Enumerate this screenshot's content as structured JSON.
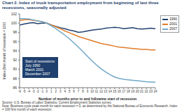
{
  "chart_data": {
    "type": "line",
    "title": "Chart 2. Index of truck transportation employment from beginning of last three recessions, seasonally adjusted",
    "x_label": "Number of months prior to and following start of recession",
    "y_label": "Index (first month of recession = 100)",
    "x": [
      -6,
      -5,
      -4,
      -3,
      -2,
      -1,
      0,
      1,
      2,
      3,
      4,
      5,
      6,
      7,
      8,
      9,
      10,
      11,
      12,
      13,
      14,
      15,
      16,
      17,
      18,
      19,
      20,
      21,
      22,
      23,
      24
    ],
    "xlim": [
      -6,
      24
    ],
    "xticks": [
      -6,
      -5,
      -4,
      -3,
      -2,
      -1,
      0,
      1,
      2,
      3,
      4,
      5,
      6,
      7,
      8,
      9,
      10,
      11,
      12,
      13,
      14,
      15,
      16,
      17,
      18,
      19,
      20,
      21,
      22,
      23,
      24
    ],
    "ylim": [
      86,
      102
    ],
    "yticks": [
      86,
      88,
      90,
      92,
      94,
      96,
      98,
      100,
      102
    ],
    "grid": false,
    "legend": "right",
    "series": [
      {
        "name": "1990",
        "color": "#1f3f6e",
        "values": [
          99.6,
          99.8,
          100.0,
          100.1,
          99.9,
          100.0,
          100.0,
          99.6,
          99.3,
          99.0,
          98.8,
          98.5,
          98.3,
          98.0,
          98.1,
          98.3,
          98.5,
          98.6,
          98.7,
          98.9,
          99.0,
          99.1,
          99.0,
          98.8,
          98.9,
          99.0,
          98.8,
          98.7,
          98.8,
          98.9,
          98.8
        ]
      },
      {
        "name": "2001",
        "color": "#e07b2a",
        "values": [
          100.6,
          100.7,
          100.8,
          100.6,
          100.5,
          100.3,
          100.0,
          99.6,
          99.2,
          98.8,
          98.3,
          97.9,
          97.5,
          97.1,
          96.8,
          96.5,
          96.2,
          95.9,
          95.6,
          95.4,
          95.2,
          95.0,
          94.8,
          94.7,
          94.6,
          94.5,
          94.4,
          94.3,
          94.3,
          94.2,
          94.2
        ]
      },
      {
        "name": "2007",
        "color": "#6fa8c8",
        "values": [
          101.0,
          101.0,
          100.9,
          100.7,
          100.5,
          100.3,
          100.0,
          99.4,
          98.8,
          98.1,
          97.4,
          96.6,
          95.7,
          94.8,
          93.8,
          92.8,
          91.8,
          90.9,
          90.1,
          89.4,
          88.8,
          88.3,
          88.0,
          87.8,
          87.7,
          87.6,
          87.5,
          87.4,
          87.3,
          87.2,
          87.2
        ]
      }
    ],
    "annotation": [
      "Start of recessions:",
      "July 1990",
      "March 2001",
      "December 2007"
    ],
    "source": "Source: U.S. Bureau of Labor Statistics, Current Employment Statistics survey.",
    "note": "Note: Business cycle peak month for each recession = 0, as determined by the National Bureau of Economic Research. Index = 100 first month of each recession."
  }
}
